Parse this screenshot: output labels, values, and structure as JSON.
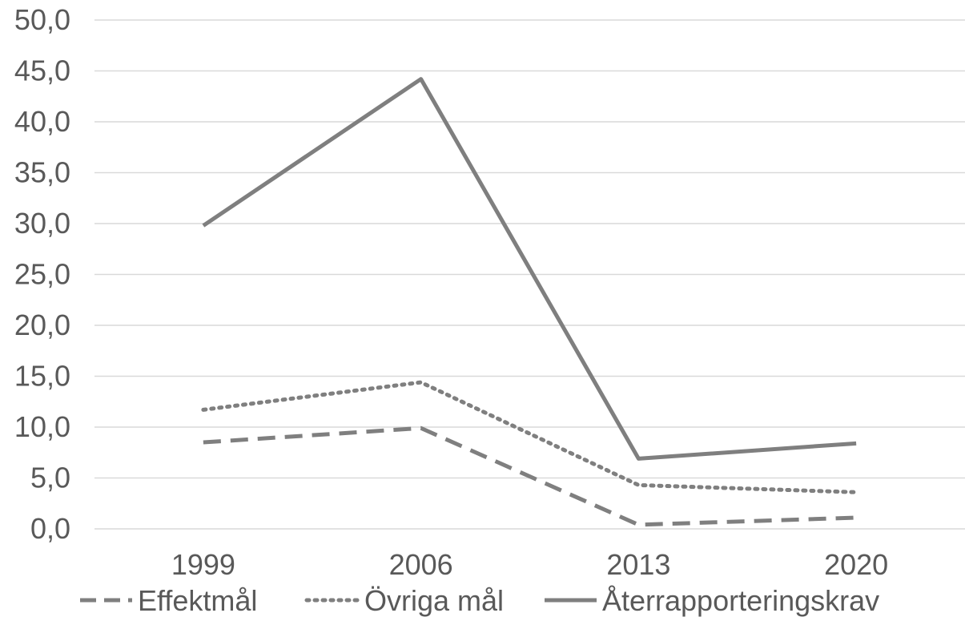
{
  "chart_data": {
    "type": "line",
    "categories": [
      "1999",
      "2006",
      "2013",
      "2020"
    ],
    "ylim": [
      0,
      50
    ],
    "ytick_labels": [
      "0,0",
      "5,0",
      "10,0",
      "15,0",
      "20,0",
      "25,0",
      "30,0",
      "35,0",
      "40,0",
      "45,0",
      "50,0"
    ],
    "grid": true,
    "legend_position": "bottom",
    "title": "",
    "xlabel": "",
    "ylabel": "",
    "series": [
      {
        "name": "Effektmål",
        "values": [
          8.5,
          9.9,
          0.4,
          1.1
        ],
        "style": "dashed",
        "color": "#7f7f7f"
      },
      {
        "name": "Övriga mål",
        "values": [
          11.7,
          14.4,
          4.3,
          3.6
        ],
        "style": "dotted",
        "color": "#7f7f7f"
      },
      {
        "name": "Återrapporteringskrav",
        "values": [
          29.8,
          44.2,
          6.9,
          8.4
        ],
        "style": "solid",
        "color": "#7f7f7f"
      }
    ]
  }
}
